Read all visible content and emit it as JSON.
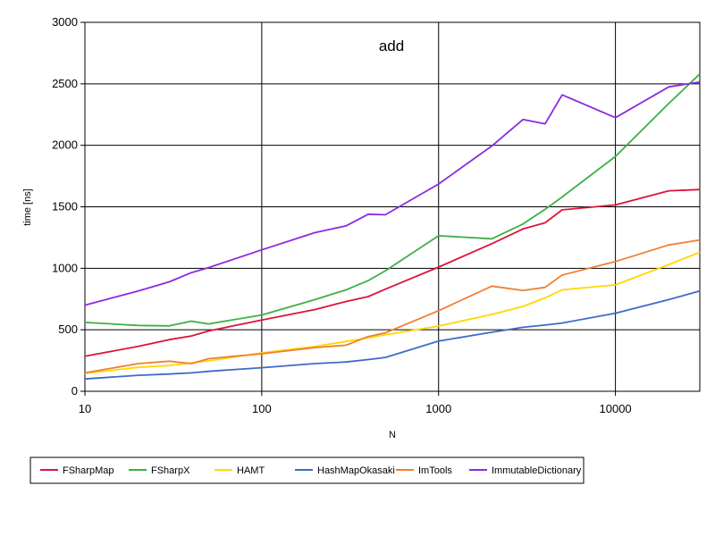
{
  "chart_data": {
    "type": "line",
    "title": "add",
    "xlabel": "N",
    "ylabel": "time [ns]",
    "xscale": "log",
    "xlim": [
      10,
      30000
    ],
    "ylim": [
      0,
      3000
    ],
    "x_ticks": [
      10,
      100,
      1000,
      10000
    ],
    "y_ticks": [
      0,
      500,
      1000,
      1500,
      2000,
      2500,
      3000
    ],
    "grid": true,
    "legend_position": "bottom",
    "series": [
      {
        "name": "FSharpMap",
        "color": "#dc143c",
        "x": [
          10,
          20,
          30,
          40,
          50,
          100,
          200,
          300,
          400,
          500,
          1000,
          2000,
          3000,
          4000,
          5000,
          10000,
          20000,
          30000
        ],
        "y": [
          285,
          365,
          420,
          450,
          490,
          580,
          665,
          730,
          770,
          830,
          1010,
          1200,
          1320,
          1370,
          1475,
          1515,
          1630,
          1640
        ]
      },
      {
        "name": "FSharpX",
        "color": "#3cb043",
        "x": [
          10,
          20,
          30,
          40,
          50,
          100,
          200,
          300,
          400,
          500,
          1000,
          2000,
          3000,
          4000,
          5000,
          10000,
          20000,
          30000
        ],
        "y": [
          560,
          535,
          532,
          570,
          548,
          620,
          745,
          825,
          900,
          980,
          1265,
          1240,
          1360,
          1480,
          1580,
          1910,
          2340,
          2580
        ]
      },
      {
        "name": "HAMT",
        "color": "#ffd700",
        "x": [
          10,
          20,
          30,
          40,
          50,
          100,
          200,
          300,
          400,
          500,
          1000,
          2000,
          3000,
          4000,
          5000,
          10000,
          20000,
          30000
        ],
        "y": [
          145,
          195,
          210,
          230,
          248,
          312,
          365,
          405,
          435,
          460,
          530,
          625,
          690,
          760,
          825,
          865,
          1030,
          1130
        ]
      },
      {
        "name": "HashMapOkasaki",
        "color": "#4169c8",
        "x": [
          10,
          20,
          30,
          40,
          50,
          100,
          200,
          300,
          400,
          500,
          1000,
          2000,
          3000,
          4000,
          5000,
          10000,
          20000,
          30000
        ],
        "y": [
          100,
          130,
          140,
          150,
          162,
          192,
          225,
          238,
          258,
          275,
          408,
          480,
          520,
          538,
          555,
          635,
          745,
          815
        ]
      },
      {
        "name": "ImTools",
        "color": "#f07f30",
        "x": [
          10,
          20,
          30,
          40,
          50,
          100,
          200,
          300,
          400,
          500,
          1000,
          2000,
          3000,
          4000,
          5000,
          10000,
          20000,
          30000
        ],
        "y": [
          150,
          225,
          245,
          225,
          265,
          305,
          355,
          375,
          445,
          475,
          655,
          855,
          820,
          845,
          945,
          1055,
          1190,
          1230
        ]
      },
      {
        "name": "ImmutableDictionary",
        "color": "#8a2be2",
        "x": [
          10,
          20,
          30,
          40,
          50,
          100,
          200,
          300,
          400,
          500,
          1000,
          2000,
          3000,
          4000,
          5000,
          10000,
          20000,
          30000
        ],
        "y": [
          700,
          815,
          890,
          965,
          1005,
          1150,
          1290,
          1345,
          1440,
          1435,
          1685,
          1995,
          2210,
          2175,
          2410,
          2225,
          2475,
          2515
        ]
      }
    ]
  }
}
